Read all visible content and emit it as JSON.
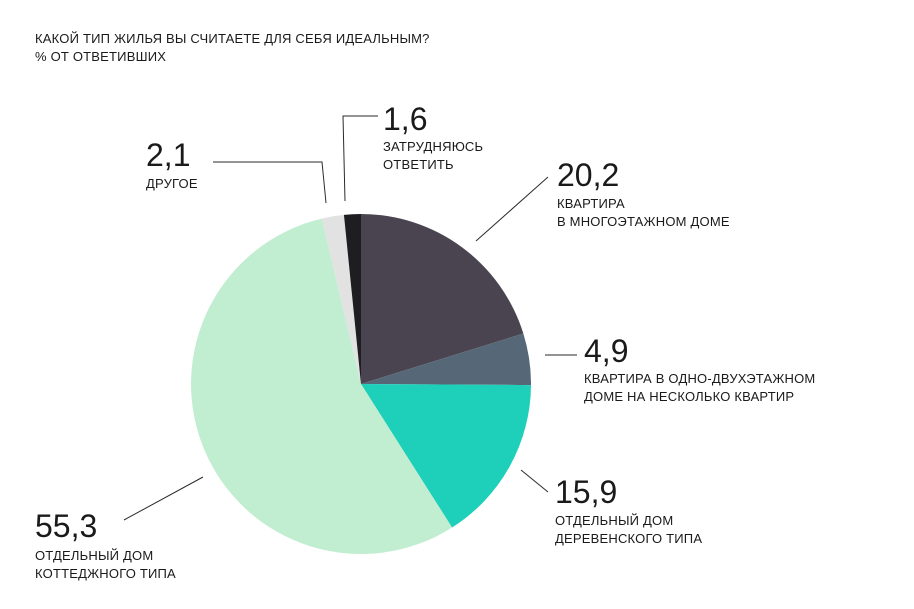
{
  "chart_data": {
    "type": "pie",
    "title": "КАКОЙ ТИП ЖИЛЬЯ ВЫ СЧИТАЕТЕ ДЛЯ СЕБЯ ИДЕАЛЬНЫМ?",
    "subtitle": "% ОТ ОТВЕТИВШИХ",
    "slices": [
      {
        "value": 20.2,
        "display": "20,2",
        "label": [
          "КВАРТИРА",
          "В МНОГОЭТАЖНОМ ДОМЕ"
        ],
        "color": "#4a4350"
      },
      {
        "value": 4.9,
        "display": "4,9",
        "label": [
          "КВАРТИРА В ОДНО-ДВУХЭТАЖНОМ",
          "ДОМЕ НА НЕСКОЛЬКО КВАРТИР"
        ],
        "color": "#566878"
      },
      {
        "value": 15.9,
        "display": "15,9",
        "label": [
          "ОТДЕЛЬНЫЙ ДОМ",
          "ДЕРЕВЕНСКОГО ТИПА"
        ],
        "color": "#1ecfb9"
      },
      {
        "value": 55.3,
        "display": "55,3",
        "label": [
          "ОТДЕЛЬНЫЙ ДОМ",
          "КОТТЕДЖНОГО ТИПА"
        ],
        "color": "#c1eed1"
      },
      {
        "value": 2.1,
        "display": "2,1",
        "label": [
          "ДРУГОЕ"
        ],
        "color": "#e2e2e2"
      },
      {
        "value": 1.6,
        "display": "1,6",
        "label": [
          "ЗАТРУДНЯЮСЬ",
          "ОТВЕТИТЬ"
        ],
        "color": "#1e1e22"
      }
    ]
  }
}
